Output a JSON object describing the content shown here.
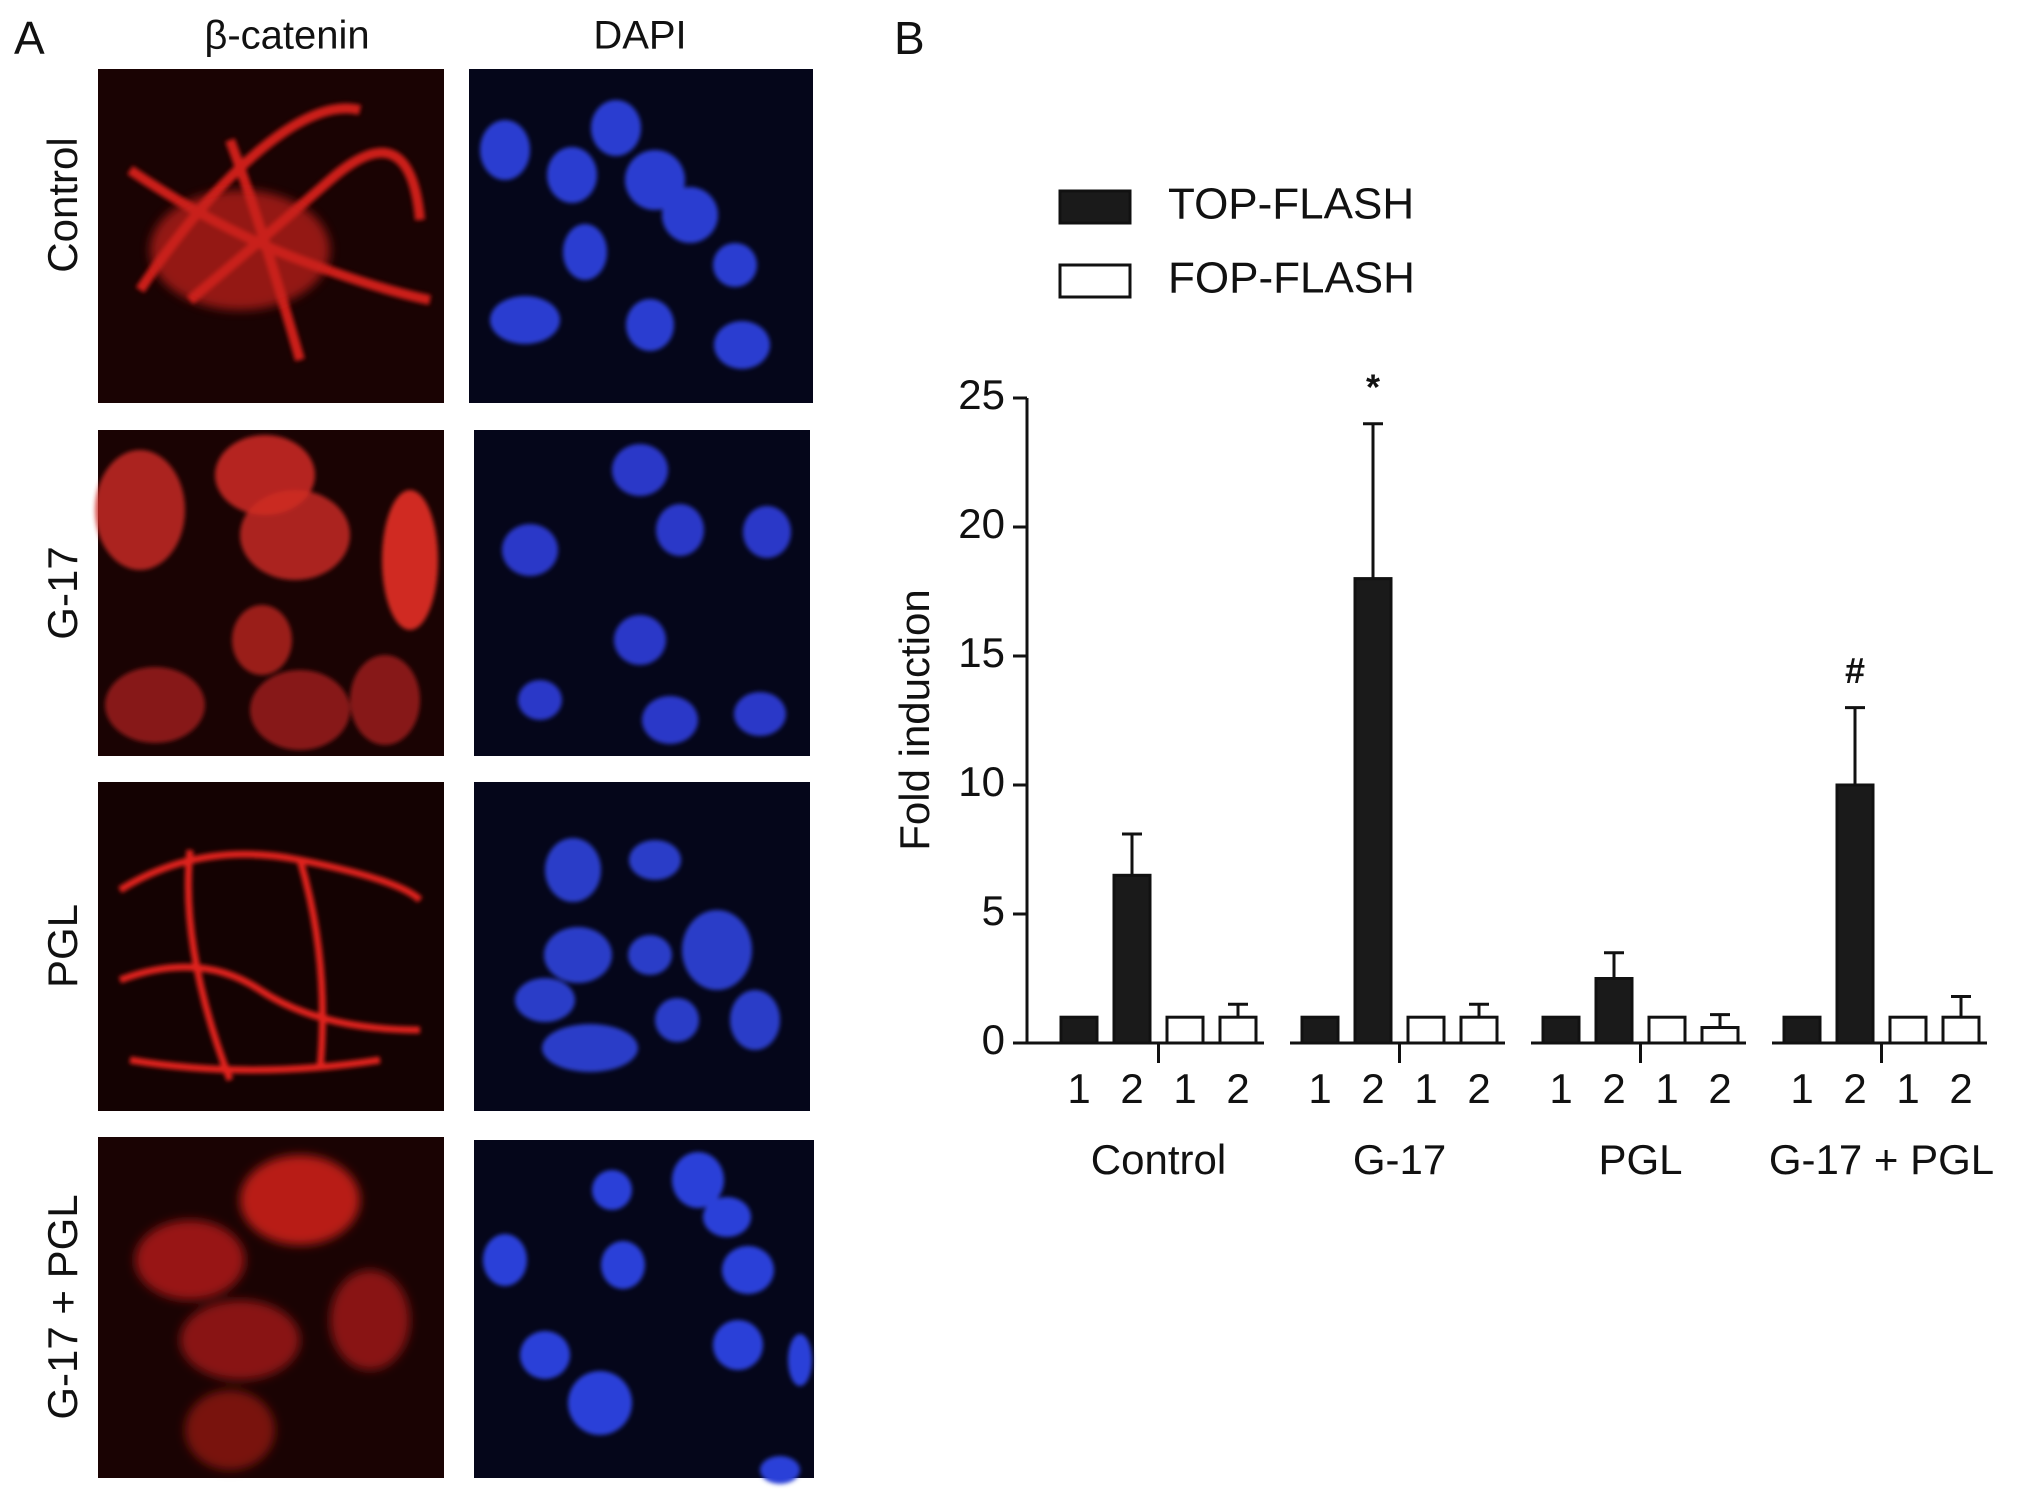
{
  "panel_a": {
    "label": "A",
    "columns": [
      "β-catenin",
      "DAPI"
    ],
    "rows": [
      "Control",
      "G-17",
      "PGL",
      "G-17 + PGL"
    ]
  },
  "chart_data": {
    "type": "bar",
    "panel_label": "B",
    "y_label": "Fold induction",
    "categories": [
      "1",
      "2",
      "1",
      "2",
      "1",
      "2",
      "1",
      "2",
      "1",
      "2",
      "1",
      "2",
      "1",
      "2",
      "1",
      "2"
    ],
    "groups": [
      "Control",
      "G-17",
      "PGL",
      "G-17 + PGL"
    ],
    "series": [
      {
        "name": "TOP-FLASH",
        "color": "#1a1a1a",
        "values": [
          1,
          6.5,
          null,
          null,
          1,
          18,
          null,
          null,
          1,
          2.5,
          null,
          null,
          1,
          10,
          null,
          null
        ],
        "errors": [
          null,
          1.6,
          null,
          null,
          null,
          6,
          null,
          null,
          null,
          1,
          null,
          null,
          null,
          3,
          null,
          null
        ],
        "annotations": [
          null,
          null,
          null,
          null,
          null,
          "*",
          null,
          null,
          null,
          null,
          null,
          null,
          null,
          "#",
          null,
          null
        ]
      },
      {
        "name": "FOP-FLASH",
        "color": "#ffffff",
        "values": [
          null,
          null,
          1,
          1,
          null,
          null,
          1,
          1,
          null,
          null,
          1,
          0.6,
          null,
          null,
          1,
          1
        ],
        "errors": [
          null,
          null,
          null,
          0.5,
          null,
          null,
          null,
          0.5,
          null,
          null,
          null,
          0.5,
          null,
          null,
          null,
          0.8
        ]
      }
    ],
    "ylim": [
      0,
      25
    ],
    "yticks": [
      0,
      5,
      10,
      15,
      20,
      25
    ],
    "grid": false
  }
}
